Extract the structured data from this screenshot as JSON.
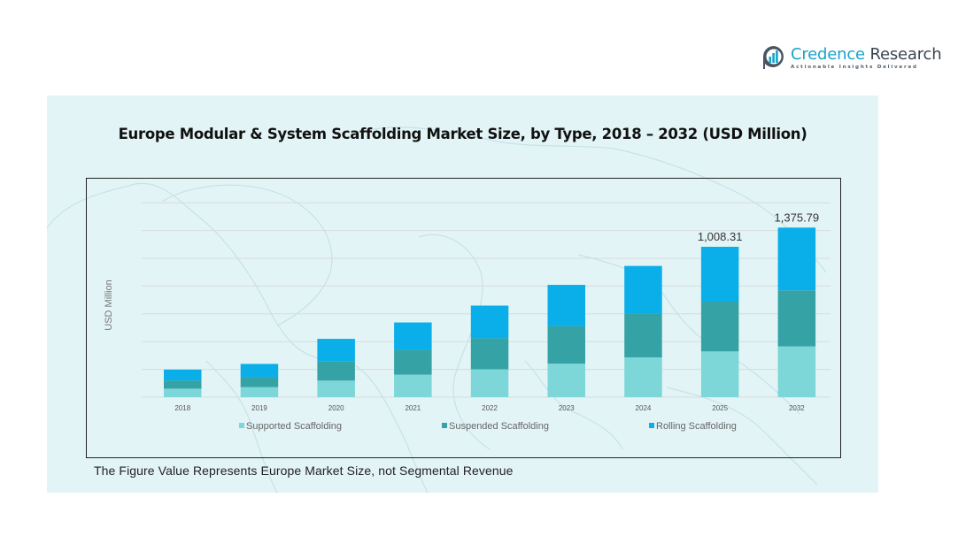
{
  "brand": {
    "name_part1": "Credence",
    "name_part2": " Research",
    "tagline": "Actionable Insights Delivered"
  },
  "footnote": "The Figure Value Represents Europe Market Size, not Segmental Revenue",
  "colors": {
    "supported": "#7dd6d8",
    "suspended": "#35a3a6",
    "rolling": "#0aaee8",
    "panel_bg": "#e3f4f6",
    "gridline": "#d6dcdc"
  },
  "chart_data": {
    "type": "bar",
    "stacked": true,
    "title": "Europe Modular & System Scaffolding Market Size, by Type, 2018 – 2032 (USD Million)",
    "xlabel": "",
    "ylabel": "USD Million",
    "grid": true,
    "legend_position": "bottom",
    "categories": [
      "2018",
      "2019",
      "2020",
      "2021",
      "2022",
      "2023",
      "2024",
      "2025",
      "2032"
    ],
    "series": [
      {
        "name": "Supported Scaffolding",
        "values": [
          57,
          67,
          111,
          151,
          187,
          225,
          267,
          306.6,
          412.0
        ]
      },
      {
        "name": "Suspended Scaffolding",
        "values": [
          55,
          69,
          128,
          166,
          208,
          252,
          291,
          334.0,
          454.3
        ]
      },
      {
        "name": "Rolling Scaffolding",
        "values": [
          73,
          87,
          152,
          184,
          219,
          276,
          322,
          367.7,
          509.5
        ]
      }
    ],
    "totals_labels": [
      {
        "category": "2025",
        "label": "1,008.31",
        "value": 1008.31
      },
      {
        "category": "2032",
        "label": "1,375.79",
        "value": 1375.79
      }
    ],
    "ylim": [
      0,
      1400
    ]
  }
}
